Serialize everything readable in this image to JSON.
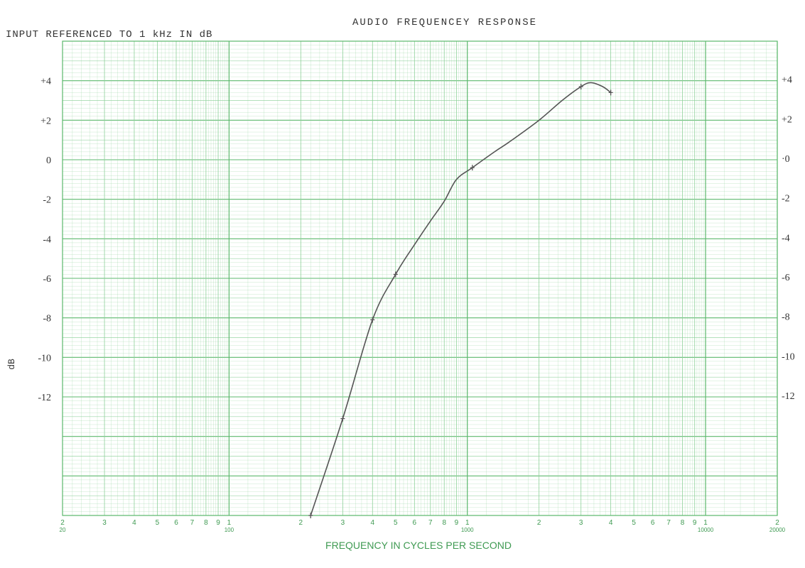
{
  "chart_data": {
    "type": "line",
    "title": "AUDIO FREQUENCEY RESPONSE",
    "subtitle": "INPUT REFERENCED TO 1 kHz IN dB",
    "xlabel": "FREQUENCY IN CYCLES PER SECOND",
    "ylabel": "dB",
    "x_scale": "log",
    "xlim": [
      20,
      20000
    ],
    "ylim": [
      -18,
      6
    ],
    "grid": true,
    "y_ticks_left": [
      "+4",
      "+2",
      "0",
      "-2",
      "-4",
      "-6",
      "-8",
      "-10",
      "-12"
    ],
    "y_ticks_right": [
      "+4",
      "+2",
      "·0",
      "-2",
      "-4",
      "-6",
      "-8",
      "-10",
      "-12"
    ],
    "y_tick_values": [
      4,
      2,
      0,
      -2,
      -4,
      -6,
      -8,
      -10,
      -12
    ],
    "x_ticks": [
      {
        "value": 20,
        "top": "2",
        "bottom": "20"
      },
      {
        "value": 30,
        "top": "3"
      },
      {
        "value": 40,
        "top": "4"
      },
      {
        "value": 50,
        "top": "5"
      },
      {
        "value": 60,
        "top": "6"
      },
      {
        "value": 70,
        "top": "7"
      },
      {
        "value": 80,
        "top": "8"
      },
      {
        "value": 90,
        "top": "9"
      },
      {
        "value": 100,
        "top": "1",
        "bottom": "100"
      },
      {
        "value": 200,
        "top": "2"
      },
      {
        "value": 300,
        "top": "3"
      },
      {
        "value": 400,
        "top": "4"
      },
      {
        "value": 500,
        "top": "5"
      },
      {
        "value": 600,
        "top": "6"
      },
      {
        "value": 700,
        "top": "7"
      },
      {
        "value": 800,
        "top": "8"
      },
      {
        "value": 900,
        "top": "9"
      },
      {
        "value": 1000,
        "top": "1",
        "bottom": "1000"
      },
      {
        "value": 2000,
        "top": "2"
      },
      {
        "value": 3000,
        "top": "3"
      },
      {
        "value": 4000,
        "top": "4"
      },
      {
        "value": 5000,
        "top": "5"
      },
      {
        "value": 6000,
        "top": "6"
      },
      {
        "value": 7000,
        "top": "7"
      },
      {
        "value": 8000,
        "top": "8"
      },
      {
        "value": 9000,
        "top": "9"
      },
      {
        "value": 10000,
        "top": "1",
        "bottom": "10000"
      },
      {
        "value": 20000,
        "top": "2",
        "bottom": "20000"
      }
    ],
    "series": [
      {
        "points": [
          {
            "x": 220,
            "y": -18.0
          },
          {
            "x": 300,
            "y": -13.1
          },
          {
            "x": 400,
            "y": -8.1
          },
          {
            "x": 500,
            "y": -5.8
          },
          {
            "x": 600,
            "y": -4.3
          },
          {
            "x": 700,
            "y": -3.1
          },
          {
            "x": 800,
            "y": -2.1
          },
          {
            "x": 900,
            "y": -1.0
          },
          {
            "x": 1050,
            "y": -0.4
          },
          {
            "x": 1300,
            "y": 0.4
          },
          {
            "x": 1500,
            "y": 0.9
          },
          {
            "x": 2000,
            "y": 2.0
          },
          {
            "x": 2500,
            "y": 3.0
          },
          {
            "x": 3000,
            "y": 3.7
          },
          {
            "x": 3300,
            "y": 3.9
          },
          {
            "x": 3700,
            "y": 3.7
          },
          {
            "x": 4000,
            "y": 3.4
          }
        ],
        "markers_at": [
          220,
          300,
          400,
          500,
          1050,
          3000,
          4000
        ]
      }
    ],
    "colors": {
      "grid": "#8fd19a",
      "grid_major": "#5bb86c",
      "axis_text": "#3f9a52",
      "curve": "#555555",
      "label_text": "#333333"
    }
  }
}
